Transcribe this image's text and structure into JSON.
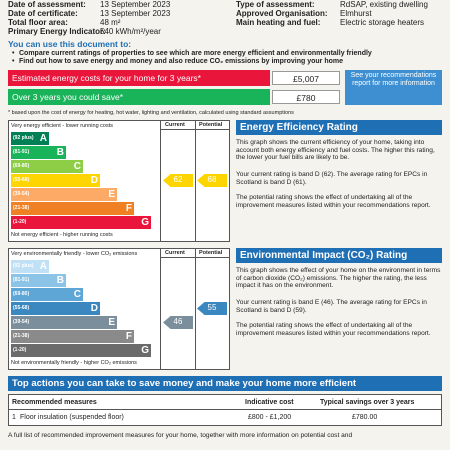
{
  "header": {
    "left": [
      {
        "label": "Date of assessment:",
        "value": "13 September 2023"
      },
      {
        "label": "Date of certificate:",
        "value": "13 September 2023"
      },
      {
        "label": "Total floor area:",
        "value": "48 m²"
      },
      {
        "label": "Primary Energy Indicator:",
        "value": "540 kWh/m²/year"
      }
    ],
    "right": [
      {
        "label": "Type of assessment:",
        "value": "RdSAP, existing dwelling"
      },
      {
        "label": "Approved Organisation:",
        "value": "Elmhurst"
      },
      {
        "label": "Main heating and fuel:",
        "value": "Electric storage heaters"
      }
    ]
  },
  "intro": {
    "heading": "You can use this document to:",
    "bullets": [
      "Compare current ratings of properties to see which are more energy efficient and environmentally friendly",
      "Find out how to save energy and money and also reduce CO₂ emissions by improving your home"
    ]
  },
  "costs": {
    "rows": [
      {
        "label": "Estimated energy costs for your home for 3 years*",
        "value": "£5,007"
      },
      {
        "label": "Over 3 years you could save*",
        "value": "£780"
      }
    ],
    "note": "See your recommendations report for more information",
    "footnote": "* based upon the cost of energy for heating, hot water, lighting and ventilation, calculated using standard assumptions"
  },
  "energy_chart": {
    "top_label": "Very energy efficient - lower running costs",
    "bottom_label": "Not energy efficient - higher running costs",
    "current_header": "Current",
    "potential_header": "Potential",
    "bands": [
      {
        "range": "(92 plus)",
        "letter": "A"
      },
      {
        "range": "(81-91)",
        "letter": "B"
      },
      {
        "range": "(69-80)",
        "letter": "C"
      },
      {
        "range": "(55-68)",
        "letter": "D"
      },
      {
        "range": "(39-54)",
        "letter": "E"
      },
      {
        "range": "(21-38)",
        "letter": "F"
      },
      {
        "range": "(1-20)",
        "letter": "G"
      }
    ],
    "current": 62,
    "potential": 68
  },
  "energy_text": {
    "title": "Energy Efficiency Rating",
    "paragraphs": [
      "This graph shows the current efficiency of your home, taking into account both energy efficiency and fuel costs. The higher this rating, the lower your fuel bills are likely to be.",
      "Your current rating is band D (62). The average rating for EPCs in Scotland is band D (61).",
      "The potential rating shows the effect of undertaking all of the improvement measures listed within your recommendations report."
    ]
  },
  "env_chart": {
    "top_label": "Very environmentally friendly - lower CO₂ emissions",
    "bottom_label": "Not environmentally friendly - higher CO₂ emissions",
    "current_header": "Current",
    "potential_header": "Potential",
    "bands": [
      {
        "range": "(92 plus)",
        "letter": "A"
      },
      {
        "range": "(81-91)",
        "letter": "B"
      },
      {
        "range": "(69-80)",
        "letter": "C"
      },
      {
        "range": "(55-68)",
        "letter": "D"
      },
      {
        "range": "(39-54)",
        "letter": "E"
      },
      {
        "range": "(21-38)",
        "letter": "F"
      },
      {
        "range": "(1-20)",
        "letter": "G"
      }
    ],
    "current": 46,
    "potential": 55
  },
  "env_text": {
    "title": "Environmental Impact (CO₂) Rating",
    "paragraphs": [
      "This graph shows the effect of your home on the environment in terms of carbon dioxide (CO₂) emissions. The higher the rating, the less impact it has on the environment.",
      "Your current rating is band E (46). The average rating for EPCs in Scotland is band D (59).",
      "The potential rating shows the effect of undertaking all of the improvement measures listed within your recommendations report."
    ]
  },
  "actions": {
    "title": "Top actions you can take to save money and make your home more efficient",
    "headers": [
      "Recommended measures",
      "Indicative cost",
      "Typical savings over 3 years"
    ],
    "rows": [
      {
        "number": "1",
        "measure": "Floor insulation (suspended floor)",
        "cost": "£800 - £1,200",
        "saving": "£780.00"
      }
    ],
    "footer": "A full list of recommended improvement measures for your home, together with more information on potential cost and"
  }
}
